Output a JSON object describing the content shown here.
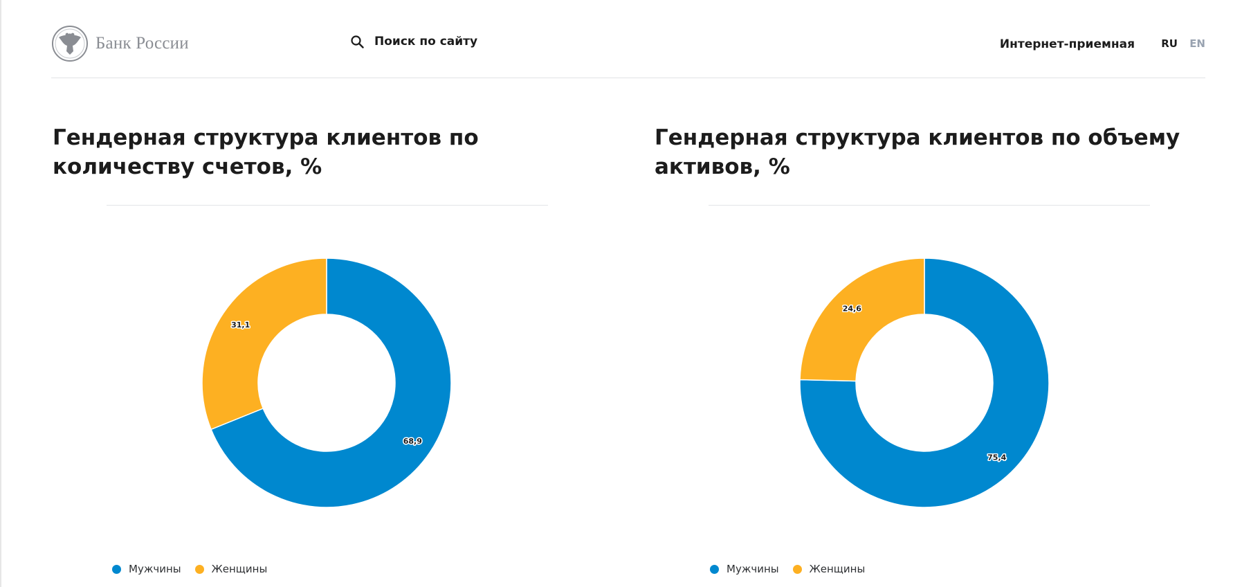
{
  "header": {
    "logo_text": "Банк России",
    "search_label": "Поиск по сайту",
    "reception_label": "Интернет-приемная",
    "lang_ru": "RU",
    "lang_en": "EN"
  },
  "colors": {
    "men": "#0088cf",
    "women": "#fdb022",
    "logo_gray": "#8a8d93",
    "lang_inactive": "#98a2b0"
  },
  "chart_data": [
    {
      "type": "pie",
      "donut": true,
      "title": "Гендерная структура клиентов по количеству счетов, %",
      "categories": [
        "Мужчины",
        "Женщины"
      ],
      "values": [
        68.9,
        31.1
      ],
      "data_labels": [
        "68,9",
        "31,1"
      ],
      "colors": [
        "#0088cf",
        "#fdb022"
      ],
      "legend_position": "bottom-left"
    },
    {
      "type": "pie",
      "donut": true,
      "title": "Гендерная структура клиентов по объему активов, %",
      "categories": [
        "Мужчины",
        "Женщины"
      ],
      "values": [
        75.4,
        24.6
      ],
      "data_labels": [
        "75,4",
        "24,6"
      ],
      "colors": [
        "#0088cf",
        "#fdb022"
      ],
      "legend_position": "bottom-left"
    }
  ]
}
